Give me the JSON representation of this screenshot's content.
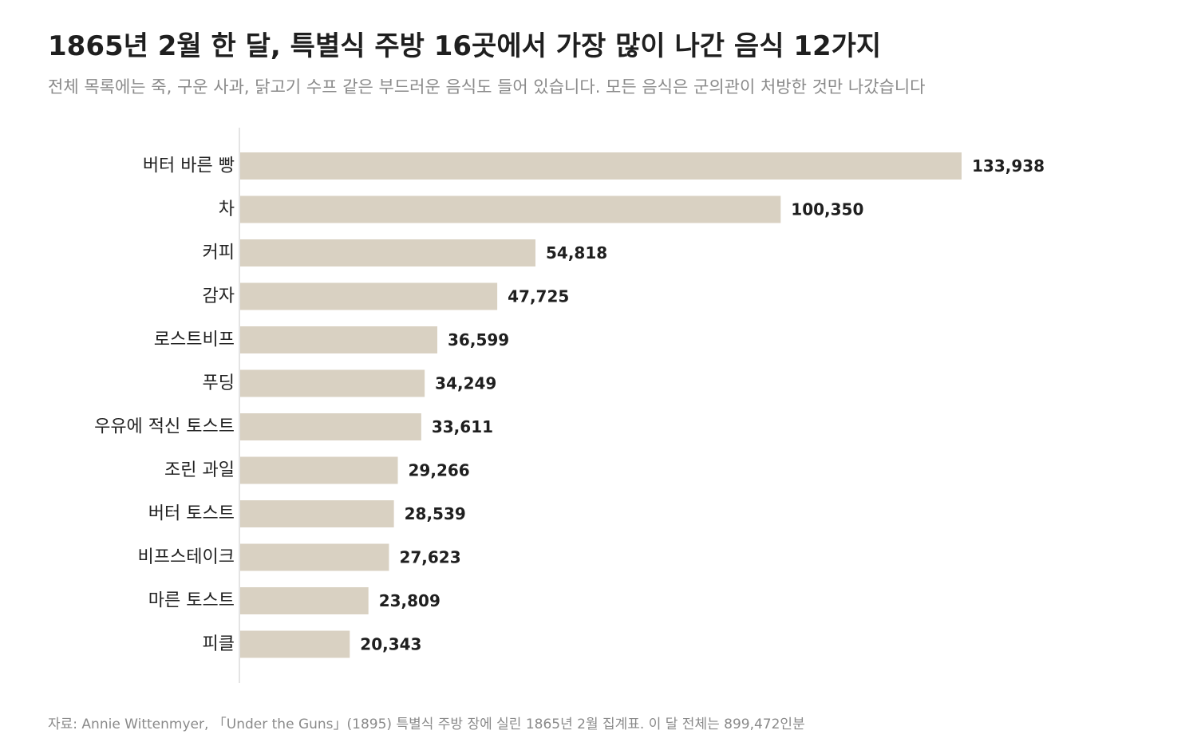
{
  "title": "1865년 2월 한 달, 특별식 주방 16곳에서 가장 많이 나간 음식 12가지",
  "subtitle": "전체 목록에는 죽, 구운 사과, 닭고기 수프 같은 부드러운 음식도 들어 있습니다. 모든 음식은 군의관이 처방한 것만 나갔습니다",
  "source": "자료: Annie Wittenmyer, 「Under the Guns」(1895) 특별식 주방 장에 실린 1865년 2월 집계표. 이 달 전체는 899,472인분",
  "colors": {
    "bar": "#d9d1c2",
    "axis": "#c8c8c8",
    "label": "#222222",
    "value": "#1f1f1f"
  },
  "chart_data": {
    "type": "bar",
    "orientation": "horizontal",
    "categories": [
      "버터 바른 빵",
      "차",
      "커피",
      "감자",
      "로스트비프",
      "푸딩",
      "우유에 적신 토스트",
      "조린 과일",
      "버터 토스트",
      "비프스테이크",
      "마른 토스트",
      "피클"
    ],
    "values": [
      133938,
      100350,
      54818,
      47725,
      36599,
      34249,
      33611,
      29266,
      28539,
      27623,
      23809,
      20343
    ],
    "value_labels": [
      "133,938",
      "100,350",
      "54,818",
      "47,725",
      "36,599",
      "34,249",
      "33,611",
      "29,266",
      "28,539",
      "27,623",
      "23,809",
      "20,343"
    ],
    "xlim": [
      0,
      150000
    ],
    "grid": false,
    "legend": "none"
  }
}
